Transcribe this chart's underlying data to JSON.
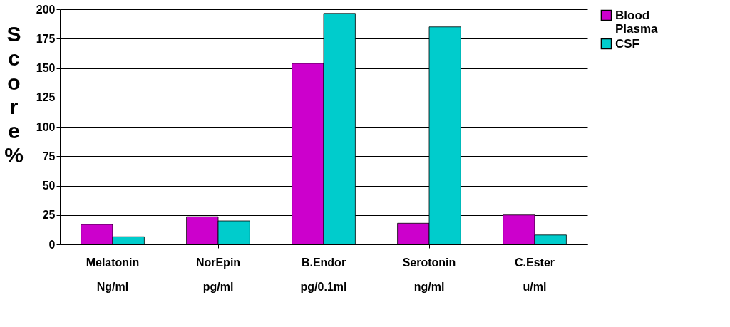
{
  "chart_data": {
    "type": "bar",
    "ylabel": "Score %",
    "categories": [
      "Melatonin\nNg/ml",
      "NorEpin\npg/ml",
      "B.Endor\npg/0.1ml",
      "Serotonin\nng/ml",
      "C.Ester\nu/ml"
    ],
    "series": [
      {
        "name": "Blood Plasma",
        "color": "#cc00cc",
        "values": [
          17,
          23.5,
          154,
          18,
          25
        ]
      },
      {
        "name": "CSF",
        "color": "#00cccc",
        "values": [
          6.5,
          20,
          196.5,
          185,
          8
        ]
      }
    ],
    "ylim": [
      0,
      200
    ],
    "yticks": [
      0,
      25,
      50,
      75,
      100,
      125,
      150,
      175,
      200
    ],
    "grid": "y",
    "legend": "right"
  }
}
